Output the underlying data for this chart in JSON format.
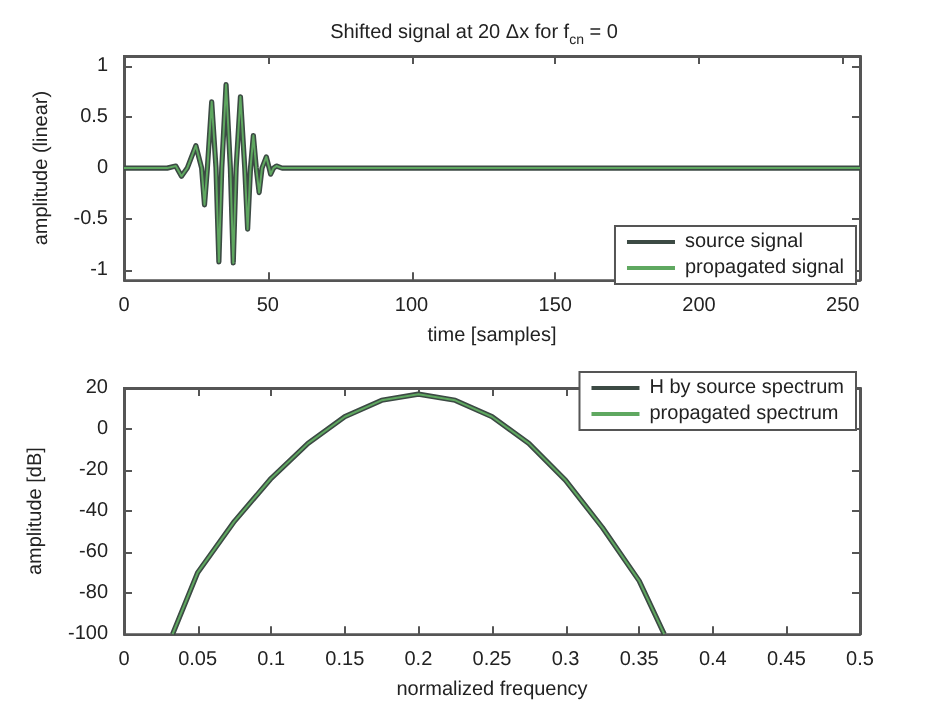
{
  "chart_data": [
    {
      "type": "line",
      "title": "Shifted signal at 20 Δx for f$_{cn}$ = 0",
      "xlabel": "time [samples]",
      "ylabel": "amplitude (linear)",
      "xlim": [
        0,
        256
      ],
      "xticks": [
        0,
        50,
        100,
        150,
        200,
        250
      ],
      "ylim": [
        -1.1,
        1.1
      ],
      "yticks": [
        -1,
        -0.5,
        0,
        0.5,
        1
      ],
      "grid": false,
      "legend": "bottom right",
      "marker": "none",
      "line_style": "solid",
      "series": [
        {
          "name": "source signal",
          "color": "#3c4a44",
          "x": [
            0,
            15,
            18,
            20,
            22,
            25,
            27,
            28,
            29,
            30.5,
            32,
            33,
            34,
            35.5,
            37,
            38,
            39,
            40.5,
            42,
            43,
            44,
            45,
            46,
            47,
            48,
            49.5,
            50.5,
            51,
            52,
            53,
            55,
            256
          ],
          "values": [
            0,
            0,
            0.02,
            -0.08,
            0,
            0.22,
            0,
            -0.36,
            0,
            0.65,
            0,
            -0.92,
            0,
            0.82,
            0,
            -0.93,
            0,
            0.7,
            0,
            -0.6,
            0,
            0.32,
            0,
            -0.24,
            0,
            0.11,
            0,
            -0.06,
            0,
            0.02,
            0,
            0
          ]
        },
        {
          "name": "propagated signal",
          "color": "#5fa860",
          "x": [
            0,
            15,
            18,
            20,
            22,
            25,
            27,
            28,
            29,
            30.5,
            32,
            33,
            34,
            35.5,
            37,
            38,
            39,
            40.5,
            42,
            43,
            44,
            45,
            46,
            47,
            48,
            49.5,
            50.5,
            51,
            52,
            53,
            55,
            256
          ],
          "values": [
            0,
            0,
            0.02,
            -0.08,
            0,
            0.22,
            0,
            -0.36,
            0,
            0.65,
            0,
            -0.92,
            0,
            0.82,
            0,
            -0.93,
            0,
            0.7,
            0,
            -0.6,
            0,
            0.32,
            0,
            -0.24,
            0,
            0.11,
            0,
            -0.06,
            0,
            0.02,
            0,
            0
          ]
        }
      ]
    },
    {
      "type": "line",
      "xlabel": "normalized frequency",
      "ylabel": "amplitude [dB]",
      "xlim": [
        0,
        0.5
      ],
      "xticks": [
        0,
        0.05,
        0.1,
        0.15,
        0.2,
        0.25,
        0.3,
        0.35,
        0.4,
        0.45,
        0.5
      ],
      "ylim": [
        -100,
        20
      ],
      "yticks": [
        -100,
        -80,
        -60,
        -40,
        -20,
        0,
        20
      ],
      "grid": false,
      "legend": "top right",
      "marker": "none",
      "line_style": "solid",
      "series": [
        {
          "name": "H by source spectrum",
          "color": "#3c4a44",
          "x": [
            0.033,
            0.05,
            0.075,
            0.1,
            0.125,
            0.15,
            0.175,
            0.2,
            0.225,
            0.25,
            0.275,
            0.3,
            0.325,
            0.35,
            0.367
          ],
          "values": [
            -100,
            -70,
            -45,
            -24,
            -7,
            6,
            14,
            17,
            14,
            6,
            -7,
            -25,
            -48,
            -74,
            -100
          ]
        },
        {
          "name": "propagated spectrum",
          "color": "#5fa860",
          "x": [
            0.033,
            0.05,
            0.075,
            0.1,
            0.125,
            0.15,
            0.175,
            0.2,
            0.225,
            0.25,
            0.275,
            0.3,
            0.325,
            0.35,
            0.367
          ],
          "values": [
            -100,
            -70,
            -45,
            -24,
            -7,
            6,
            14,
            17,
            14,
            6,
            -7,
            -25,
            -48,
            -74,
            -100
          ]
        }
      ]
    }
  ]
}
